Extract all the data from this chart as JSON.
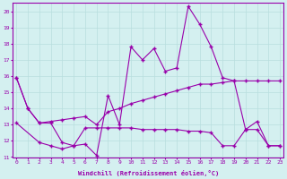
{
  "line1_x": [
    0,
    1,
    2,
    3,
    4,
    5,
    6,
    7,
    8,
    9,
    10,
    11,
    12,
    13,
    14,
    15,
    16,
    17,
    18,
    19,
    20,
    21,
    22,
    23
  ],
  "line1_y": [
    15.9,
    14.0,
    13.1,
    13.1,
    11.9,
    11.7,
    11.8,
    11.1,
    14.8,
    13.0,
    17.8,
    17.0,
    17.7,
    16.3,
    16.5,
    20.3,
    19.2,
    17.8,
    15.9,
    15.7,
    12.7,
    13.2,
    11.7,
    11.7
  ],
  "line2_x": [
    0,
    1,
    2,
    3,
    4,
    5,
    6,
    7,
    8,
    9,
    10,
    11,
    12,
    13,
    14,
    15,
    16,
    17,
    18,
    19,
    20,
    21,
    22,
    23
  ],
  "line2_y": [
    15.9,
    14.0,
    13.1,
    13.2,
    13.3,
    13.4,
    13.5,
    13.0,
    13.8,
    14.0,
    14.3,
    14.5,
    14.7,
    14.9,
    15.1,
    15.3,
    15.5,
    15.5,
    15.6,
    15.7,
    15.7,
    15.7,
    15.7,
    15.7
  ],
  "line3_x": [
    0,
    2,
    3,
    4,
    5,
    6,
    7,
    8,
    9,
    10,
    11,
    12,
    13,
    14,
    15,
    16,
    17,
    18,
    19,
    20,
    21,
    22,
    23
  ],
  "line3_y": [
    13.1,
    11.9,
    11.7,
    11.5,
    11.7,
    12.8,
    12.8,
    12.8,
    12.8,
    12.8,
    12.7,
    12.7,
    12.7,
    12.7,
    12.6,
    12.6,
    12.5,
    11.7,
    11.7,
    12.7,
    12.7,
    11.7,
    11.7
  ],
  "line_color": "#9900aa",
  "bg_color": "#d4f0f0",
  "grid_color": "#b8dede",
  "xlabel": "Windchill (Refroidissement éolien,°C)",
  "xlim": [
    -0.3,
    23.3
  ],
  "ylim": [
    11,
    20.5
  ],
  "yticks": [
    11,
    12,
    13,
    14,
    15,
    16,
    17,
    18,
    19,
    20
  ],
  "xticks": [
    0,
    1,
    2,
    3,
    4,
    5,
    6,
    7,
    8,
    9,
    10,
    11,
    12,
    13,
    14,
    15,
    16,
    17,
    18,
    19,
    20,
    21,
    22,
    23
  ]
}
